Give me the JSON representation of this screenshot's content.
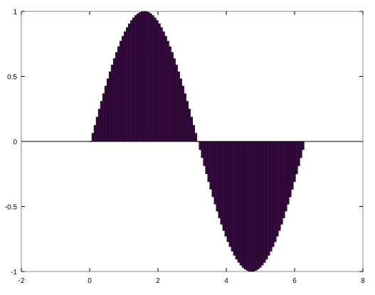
{
  "chart_data": {
    "type": "bar",
    "title": "",
    "xlabel": "",
    "ylabel": "",
    "xlim": [
      -2,
      8
    ],
    "ylim": [
      -1,
      1
    ],
    "xticks": [
      -2,
      0,
      2,
      4,
      6,
      8
    ],
    "yticks": [
      -1,
      -0.5,
      0,
      0.5,
      1
    ],
    "xtick_labels": [
      "-2",
      "0",
      "2",
      "4",
      "6",
      "8"
    ],
    "ytick_labels": [
      "-1",
      "-0.5",
      "0",
      "0.5",
      "1"
    ],
    "grid": false,
    "legend": "none",
    "bar_color": "#3b0a45",
    "bar_edge_color": "#000000",
    "zero_line": true,
    "series": [
      {
        "x_start": 0,
        "x_end": 6.2832,
        "bar_width": 0.0628,
        "function": "sin(x)",
        "values": [
          0.0,
          0.063,
          0.125,
          0.187,
          0.249,
          0.309,
          0.368,
          0.426,
          0.482,
          0.536,
          0.588,
          0.637,
          0.685,
          0.729,
          0.771,
          0.809,
          0.844,
          0.876,
          0.905,
          0.93,
          0.951,
          0.969,
          0.982,
          0.992,
          0.998,
          1.0,
          0.998,
          0.992,
          0.982,
          0.969,
          0.951,
          0.93,
          0.905,
          0.876,
          0.844,
          0.809,
          0.771,
          0.729,
          0.685,
          0.637,
          0.588,
          0.536,
          0.482,
          0.426,
          0.368,
          0.309,
          0.249,
          0.187,
          0.125,
          0.063,
          0.0,
          -0.063,
          -0.125,
          -0.187,
          -0.249,
          -0.309,
          -0.368,
          -0.426,
          -0.482,
          -0.536,
          -0.588,
          -0.637,
          -0.685,
          -0.729,
          -0.771,
          -0.809,
          -0.844,
          -0.876,
          -0.905,
          -0.93,
          -0.951,
          -0.969,
          -0.982,
          -0.992,
          -0.998,
          -1.0,
          -0.998,
          -0.992,
          -0.982,
          -0.969,
          -0.951,
          -0.93,
          -0.905,
          -0.876,
          -0.844,
          -0.809,
          -0.771,
          -0.729,
          -0.685,
          -0.637,
          -0.588,
          -0.536,
          -0.482,
          -0.426,
          -0.368,
          -0.309,
          -0.249,
          -0.187,
          -0.125,
          -0.063
        ]
      }
    ]
  }
}
